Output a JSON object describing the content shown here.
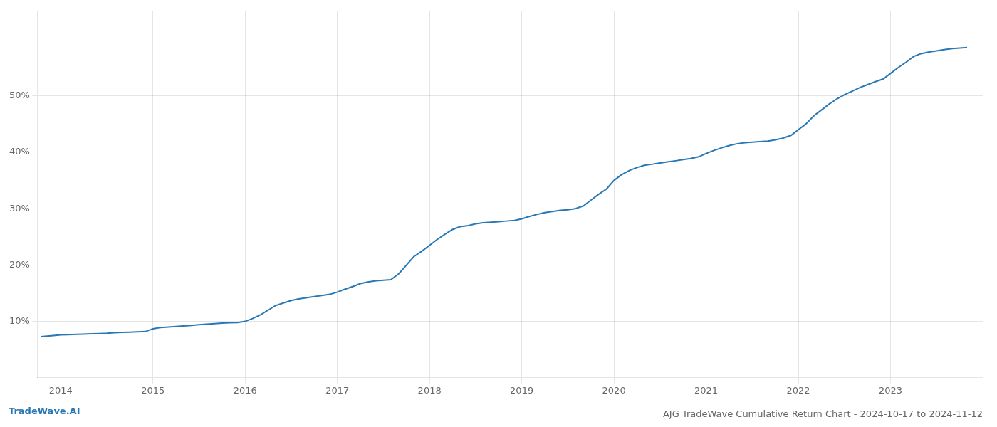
{
  "chart_data": {
    "type": "line",
    "title": "AJG TradeWave Cumulative Return Chart - 2024-10-17 to 2024-11-12",
    "annotations": [
      "TradeWave.AI"
    ],
    "color": "#2878b5",
    "grid": true,
    "x": [
      2013.79,
      2013.85,
      2013.92,
      2014.0,
      2014.08,
      2014.17,
      2014.25,
      2014.33,
      2014.42,
      2014.5,
      2014.58,
      2014.67,
      2014.75,
      2014.83,
      2014.92,
      2015.0,
      2015.08,
      2015.17,
      2015.25,
      2015.33,
      2015.42,
      2015.5,
      2015.58,
      2015.67,
      2015.75,
      2015.83,
      2015.92,
      2016.0,
      2016.08,
      2016.17,
      2016.25,
      2016.33,
      2016.42,
      2016.5,
      2016.58,
      2016.67,
      2016.75,
      2016.83,
      2016.92,
      2017.0,
      2017.08,
      2017.17,
      2017.25,
      2017.33,
      2017.42,
      2017.5,
      2017.58,
      2017.67,
      2017.75,
      2017.83,
      2017.92,
      2018.0,
      2018.08,
      2018.17,
      2018.25,
      2018.33,
      2018.42,
      2018.5,
      2018.58,
      2018.67,
      2018.75,
      2018.83,
      2018.92,
      2019.0,
      2019.08,
      2019.17,
      2019.25,
      2019.33,
      2019.42,
      2019.5,
      2019.58,
      2019.67,
      2019.75,
      2019.83,
      2019.92,
      2020.0,
      2020.08,
      2020.17,
      2020.25,
      2020.33,
      2020.42,
      2020.5,
      2020.58,
      2020.67,
      2020.75,
      2020.83,
      2020.92,
      2021.0,
      2021.08,
      2021.17,
      2021.25,
      2021.33,
      2021.42,
      2021.5,
      2021.58,
      2021.67,
      2021.75,
      2021.83,
      2021.92,
      2022.0,
      2022.08,
      2022.17,
      2022.25,
      2022.33,
      2022.42,
      2022.5,
      2022.58,
      2022.67,
      2022.75,
      2022.83,
      2022.92,
      2023.0,
      2023.08,
      2023.17,
      2023.25,
      2023.33,
      2023.42,
      2023.5,
      2023.58,
      2023.67,
      2023.75,
      2023.83
    ],
    "values": [
      7.3,
      7.4,
      7.5,
      7.6,
      7.65,
      7.7,
      7.75,
      7.8,
      7.85,
      7.9,
      8.0,
      8.05,
      8.1,
      8.15,
      8.2,
      8.7,
      8.9,
      9.0,
      9.1,
      9.2,
      9.3,
      9.4,
      9.5,
      9.6,
      9.7,
      9.75,
      9.8,
      10.0,
      10.5,
      11.2,
      12.0,
      12.8,
      13.3,
      13.7,
      14.0,
      14.2,
      14.4,
      14.6,
      14.8,
      15.2,
      15.7,
      16.2,
      16.7,
      17.0,
      17.2,
      17.3,
      17.4,
      18.5,
      20.0,
      21.5,
      22.5,
      23.5,
      24.5,
      25.5,
      26.3,
      26.8,
      27.0,
      27.3,
      27.5,
      27.6,
      27.7,
      27.8,
      27.9,
      28.2,
      28.6,
      29.0,
      29.3,
      29.5,
      29.7,
      29.8,
      30.0,
      30.5,
      31.5,
      32.5,
      33.5,
      35.0,
      36.0,
      36.8,
      37.3,
      37.7,
      37.9,
      38.1,
      38.3,
      38.5,
      38.7,
      38.9,
      39.2,
      39.8,
      40.3,
      40.8,
      41.2,
      41.5,
      41.7,
      41.8,
      41.9,
      42.0,
      42.2,
      42.5,
      43.0,
      44.0,
      45.0,
      46.5,
      47.5,
      48.5,
      49.5,
      50.2,
      50.8,
      51.5,
      52.0,
      52.5,
      53.0,
      54.0,
      55.0,
      56.0,
      57.0,
      57.5,
      57.8,
      58.0,
      58.2,
      58.4,
      58.5,
      58.6
    ],
    "xlim": [
      2013.75,
      2024.0
    ],
    "xticks": [
      2014,
      2015,
      2016,
      2017,
      2018,
      2019,
      2020,
      2021,
      2022,
      2023
    ],
    "ylim": [
      0,
      65
    ],
    "yticks": [
      {
        "value": 10,
        "label": "10%"
      },
      {
        "value": 20,
        "label": "20%"
      },
      {
        "value": 30,
        "label": "30%"
      },
      {
        "value": 40,
        "label": "40%"
      },
      {
        "value": 50,
        "label": "50%"
      }
    ]
  }
}
